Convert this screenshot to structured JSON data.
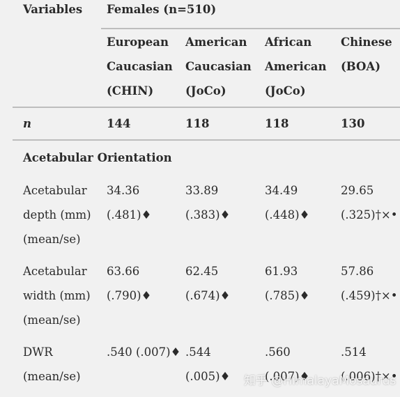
{
  "table": {
    "header": {
      "variables": "Variables",
      "group": "Females (n=510)"
    },
    "columns": [
      [
        "European",
        "Caucasian",
        "(CHIN)"
      ],
      [
        "American",
        "Caucasian",
        "(JoCo)"
      ],
      [
        "African",
        "American",
        "(JoCo)"
      ],
      [
        "Chinese",
        "(BOA)"
      ]
    ],
    "n_row": {
      "label": "n",
      "values": [
        144,
        118,
        118,
        130
      ]
    },
    "section": "Acetabular Orientation",
    "rows": [
      {
        "label": [
          "Acetabular",
          "depth (mm)",
          "(mean/se)"
        ],
        "cells": [
          [
            "34.36",
            "(.481)♦"
          ],
          [
            "33.89",
            "(.383)♦"
          ],
          [
            "34.49",
            "(.448)♦"
          ],
          [
            "29.65",
            "(.325)†×•"
          ]
        ]
      },
      {
        "label": [
          "Acetabular",
          "width (mm)",
          "(mean/se)"
        ],
        "cells": [
          [
            "63.66",
            "(.790)♦"
          ],
          [
            "62.45",
            "(.674)♦"
          ],
          [
            "61.93",
            "(.785)♦"
          ],
          [
            "57.86",
            "(.459)†×•"
          ]
        ]
      },
      {
        "label": [
          "DWR",
          "(mean/se)"
        ],
        "cells": [
          [
            ".540 (.007)♦"
          ],
          [
            ".544",
            "(.005)♦"
          ],
          [
            ".560",
            "(.007)♦"
          ],
          [
            ".514",
            "(.006)†×•"
          ]
        ]
      }
    ]
  },
  "watermark": "知乎 @HimalayaMosaurus"
}
